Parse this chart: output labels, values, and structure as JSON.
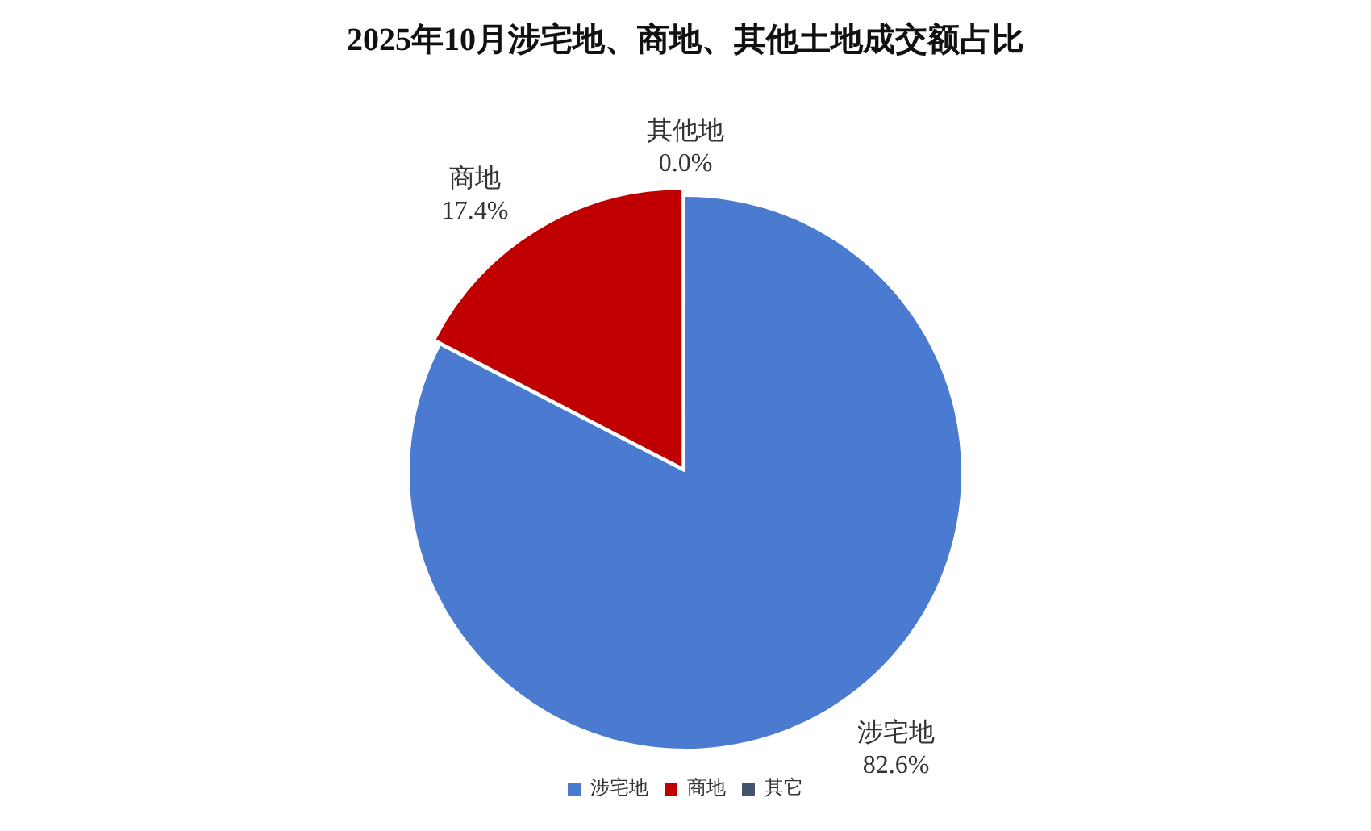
{
  "chart_data": {
    "type": "pie",
    "title": "2025年10月涉宅地、商地、其他土地成交额占比",
    "categories": [
      "涉宅地",
      "商地",
      "其它"
    ],
    "values": [
      82.6,
      17.4,
      0.0
    ],
    "colors": [
      "#4a7bd0",
      "#c00000",
      "#44546a"
    ],
    "value_labels": [
      "涉宅地\n82.6%",
      "商地\n17.4%",
      "其他地\n0.0%"
    ],
    "legend": "bottom"
  }
}
